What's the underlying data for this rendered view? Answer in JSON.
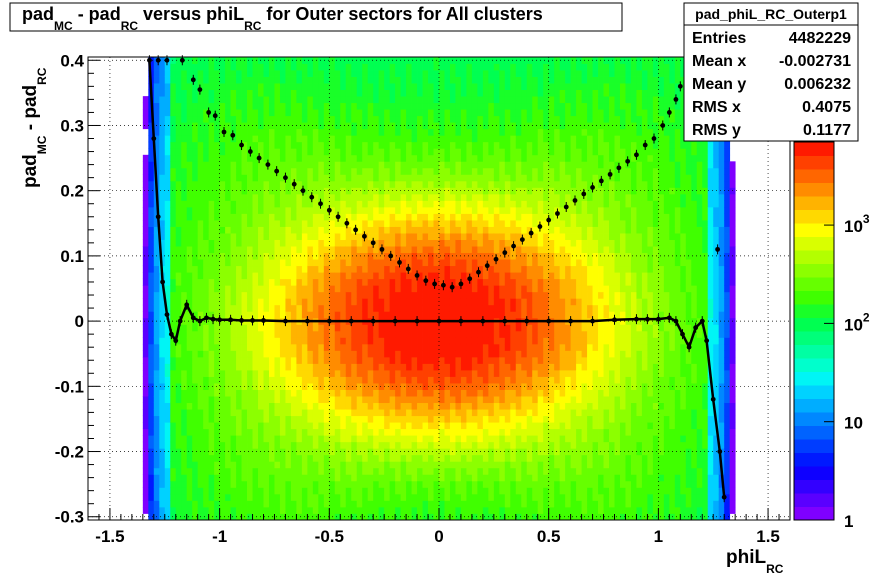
{
  "chart_data": {
    "type": "heatmap",
    "title": {
      "parts": [
        "pad",
        "MC",
        " - pad",
        "RC",
        " versus phiL",
        "RC",
        " for Outer sectors for All clusters"
      ]
    },
    "xlabel": {
      "main": "phiL",
      "sub": "RC"
    },
    "ylabel": {
      "main": "pad",
      "sub1": "MC",
      "mid": " - pad",
      "sub2": "RC"
    },
    "xlim": [
      -1.6,
      1.6
    ],
    "ylim": [
      -0.305,
      0.405
    ],
    "x_ticks": [
      {
        "v": -1.5,
        "label": "-1.5"
      },
      {
        "v": -1,
        "label": "-1"
      },
      {
        "v": -0.5,
        "label": "-0.5"
      },
      {
        "v": 0,
        "label": "0"
      },
      {
        "v": 0.5,
        "label": "0.5"
      },
      {
        "v": 1,
        "label": "1"
      },
      {
        "v": 1.5,
        "label": "1.5"
      }
    ],
    "y_ticks": [
      {
        "v": -0.3,
        "label": "-0.3"
      },
      {
        "v": -0.2,
        "label": "-0.2"
      },
      {
        "v": -0.1,
        "label": "-0.1"
      },
      {
        "v": 0,
        "label": "0"
      },
      {
        "v": 0.1,
        "label": "0.1"
      },
      {
        "v": 0.2,
        "label": "0.2"
      },
      {
        "v": 0.3,
        "label": "0.3"
      },
      {
        "v": 0.4,
        "label": "0.4"
      }
    ],
    "grid": true,
    "log_z": true,
    "z_range": [
      1,
      7000
    ],
    "palette_labels": [
      {
        "v": 1,
        "base": "1",
        "exp": ""
      },
      {
        "v": 10,
        "base": "10",
        "exp": ""
      },
      {
        "v": 100,
        "base": "10",
        "exp": "2"
      },
      {
        "v": 1000,
        "base": "10",
        "exp": "3"
      }
    ],
    "stats": {
      "name": "pad_phiL_RC_Outerp1",
      "rows": [
        {
          "label": "Entries",
          "value": "4482229"
        },
        {
          "label": "Mean x",
          "value": "-0.002731"
        },
        {
          "label": "Mean y",
          "value": "0.006232"
        },
        {
          "label": "RMS x",
          "value": "0.4075"
        },
        {
          "label": "RMS y",
          "value": "0.1177"
        }
      ]
    },
    "series": [
      {
        "type": "profile-mean",
        "points": [
          [
            -1.32,
            0.4
          ],
          [
            -1.3,
            0.28
          ],
          [
            -1.28,
            0.16
          ],
          [
            -1.26,
            0.06
          ],
          [
            -1.24,
            0.01
          ],
          [
            -1.22,
            -0.02
          ],
          [
            -1.2,
            -0.03
          ],
          [
            -1.18,
            0.0
          ],
          [
            -1.15,
            0.025
          ],
          [
            -1.12,
            0.005
          ],
          [
            -1.09,
            0.0
          ],
          [
            -1.06,
            0.005
          ],
          [
            -1.03,
            0.003
          ],
          [
            -1.0,
            0.002
          ],
          [
            -0.95,
            0.002
          ],
          [
            -0.9,
            0.001
          ],
          [
            -0.85,
            0.001
          ],
          [
            -0.8,
            0.001
          ],
          [
            -0.7,
            0.0
          ],
          [
            -0.6,
            0.0
          ],
          [
            -0.5,
            0.0
          ],
          [
            -0.4,
            0.0
          ],
          [
            -0.3,
            0.0
          ],
          [
            -0.2,
            0.0
          ],
          [
            -0.1,
            0.0
          ],
          [
            0.0,
            0.0
          ],
          [
            0.1,
            0.0
          ],
          [
            0.2,
            0.0
          ],
          [
            0.3,
            0.0
          ],
          [
            0.4,
            0.0
          ],
          [
            0.5,
            0.0
          ],
          [
            0.6,
            0.0
          ],
          [
            0.7,
            0.0
          ],
          [
            0.8,
            0.002
          ],
          [
            0.9,
            0.003
          ],
          [
            0.95,
            0.003
          ],
          [
            1.0,
            0.003
          ],
          [
            1.05,
            0.005
          ],
          [
            1.08,
            0.0
          ],
          [
            1.11,
            -0.02
          ],
          [
            1.14,
            -0.04
          ],
          [
            1.17,
            -0.01
          ],
          [
            1.2,
            0.0
          ],
          [
            1.22,
            -0.03
          ],
          [
            1.25,
            -0.12
          ],
          [
            1.28,
            -0.2
          ],
          [
            1.3,
            -0.27
          ]
        ]
      },
      {
        "type": "profile-rms",
        "points": [
          [
            -1.28,
            0.4
          ],
          [
            -1.24,
            0.4
          ],
          [
            -1.17,
            0.4
          ],
          [
            -1.12,
            0.37
          ],
          [
            -1.09,
            0.355
          ],
          [
            -1.05,
            0.32
          ],
          [
            -1.02,
            0.315
          ],
          [
            -0.98,
            0.29
          ],
          [
            -0.94,
            0.285
          ],
          [
            -0.9,
            0.27
          ],
          [
            -0.86,
            0.26
          ],
          [
            -0.82,
            0.25
          ],
          [
            -0.78,
            0.24
          ],
          [
            -0.74,
            0.23
          ],
          [
            -0.7,
            0.22
          ],
          [
            -0.66,
            0.21
          ],
          [
            -0.62,
            0.2
          ],
          [
            -0.58,
            0.19
          ],
          [
            -0.54,
            0.18
          ],
          [
            -0.5,
            0.17
          ],
          [
            -0.46,
            0.16
          ],
          [
            -0.42,
            0.15
          ],
          [
            -0.38,
            0.14
          ],
          [
            -0.34,
            0.13
          ],
          [
            -0.3,
            0.12
          ],
          [
            -0.26,
            0.11
          ],
          [
            -0.22,
            0.1
          ],
          [
            -0.18,
            0.09
          ],
          [
            -0.14,
            0.08
          ],
          [
            -0.1,
            0.07
          ],
          [
            -0.06,
            0.062
          ],
          [
            -0.02,
            0.057
          ],
          [
            0.02,
            0.055
          ],
          [
            0.06,
            0.052
          ],
          [
            0.1,
            0.057
          ],
          [
            0.14,
            0.065
          ],
          [
            0.18,
            0.075
          ],
          [
            0.22,
            0.085
          ],
          [
            0.26,
            0.095
          ],
          [
            0.3,
            0.105
          ],
          [
            0.34,
            0.115
          ],
          [
            0.38,
            0.125
          ],
          [
            0.42,
            0.135
          ],
          [
            0.46,
            0.145
          ],
          [
            0.5,
            0.155
          ],
          [
            0.54,
            0.165
          ],
          [
            0.58,
            0.175
          ],
          [
            0.62,
            0.185
          ],
          [
            0.66,
            0.195
          ],
          [
            0.7,
            0.205
          ],
          [
            0.74,
            0.215
          ],
          [
            0.78,
            0.225
          ],
          [
            0.82,
            0.235
          ],
          [
            0.86,
            0.245
          ],
          [
            0.9,
            0.255
          ],
          [
            0.94,
            0.27
          ],
          [
            0.98,
            0.28
          ],
          [
            1.02,
            0.3
          ],
          [
            1.05,
            0.32
          ],
          [
            1.08,
            0.34
          ],
          [
            1.1,
            0.36
          ],
          [
            1.13,
            0.37
          ],
          [
            1.18,
            0.4
          ],
          [
            1.27,
            0.11
          ]
        ]
      }
    ]
  }
}
